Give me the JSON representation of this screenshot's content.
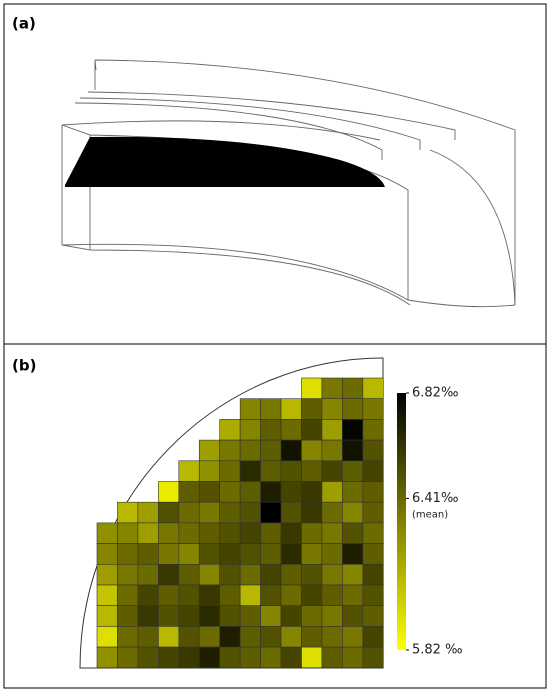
{
  "panel_labels": [
    "(a)",
    "(b)"
  ],
  "chart_data": {
    "type": "heatmap",
    "values": [
      [
        null,
        null,
        null,
        null,
        null,
        null,
        null,
        null,
        null,
        null,
        5.95,
        6.35,
        6.4,
        6.1
      ],
      [
        null,
        null,
        null,
        null,
        null,
        null,
        null,
        6.3,
        6.35,
        6.1,
        6.45,
        6.3,
        6.4,
        6.35
      ],
      [
        null,
        null,
        null,
        null,
        null,
        null,
        6.15,
        6.3,
        6.45,
        6.4,
        6.55,
        6.2,
        6.8,
        6.4
      ],
      [
        null,
        null,
        null,
        null,
        null,
        6.2,
        6.35,
        6.4,
        6.45,
        6.75,
        6.3,
        6.35,
        6.75,
        6.5
      ],
      [
        null,
        null,
        null,
        null,
        6.1,
        6.25,
        6.4,
        6.65,
        6.45,
        6.5,
        6.45,
        6.55,
        6.45,
        6.55
      ],
      [
        null,
        null,
        null,
        5.9,
        6.45,
        6.5,
        6.4,
        6.45,
        6.7,
        6.55,
        6.6,
        6.2,
        6.4,
        6.45
      ],
      [
        null,
        6.1,
        6.2,
        6.5,
        6.4,
        6.35,
        6.45,
        6.5,
        6.82,
        6.5,
        6.6,
        6.4,
        6.3,
        6.45
      ],
      [
        6.25,
        6.3,
        6.2,
        6.35,
        6.4,
        6.45,
        6.5,
        6.55,
        6.45,
        6.6,
        6.4,
        6.35,
        6.5,
        6.4
      ],
      [
        6.3,
        6.4,
        6.45,
        6.35,
        6.3,
        6.5,
        6.55,
        6.5,
        6.45,
        6.65,
        6.35,
        6.4,
        6.7,
        6.45
      ],
      [
        6.2,
        6.35,
        6.4,
        6.6,
        6.45,
        6.3,
        6.5,
        6.4,
        6.55,
        6.45,
        6.5,
        6.35,
        6.3,
        6.55
      ],
      [
        6.05,
        6.4,
        6.55,
        6.45,
        6.5,
        6.6,
        6.45,
        6.1,
        6.5,
        6.4,
        6.55,
        6.45,
        6.4,
        6.5
      ],
      [
        6.1,
        6.45,
        6.6,
        6.5,
        6.55,
        6.65,
        6.5,
        6.45,
        6.3,
        6.55,
        6.4,
        6.35,
        6.5,
        6.45
      ],
      [
        5.95,
        6.4,
        6.45,
        6.1,
        6.5,
        6.4,
        6.7,
        6.45,
        6.5,
        6.3,
        6.45,
        6.4,
        6.35,
        6.55
      ],
      [
        6.25,
        6.4,
        6.5,
        6.55,
        6.6,
        6.7,
        6.5,
        6.45,
        6.4,
        6.55,
        5.95,
        6.45,
        6.4,
        6.5
      ]
    ],
    "colors": [
      "#ffff00",
      "#000000"
    ],
    "colorbar": {
      "lim": [
        5.82,
        6.82
      ],
      "ticks": [
        {
          "value": 6.82,
          "label": "6.82‰"
        },
        {
          "value": 6.41,
          "label": "6.41‰"
        },
        {
          "value": 5.82,
          "label": "5.82 ‰"
        }
      ]
    },
    "annotation": "(mean)"
  }
}
